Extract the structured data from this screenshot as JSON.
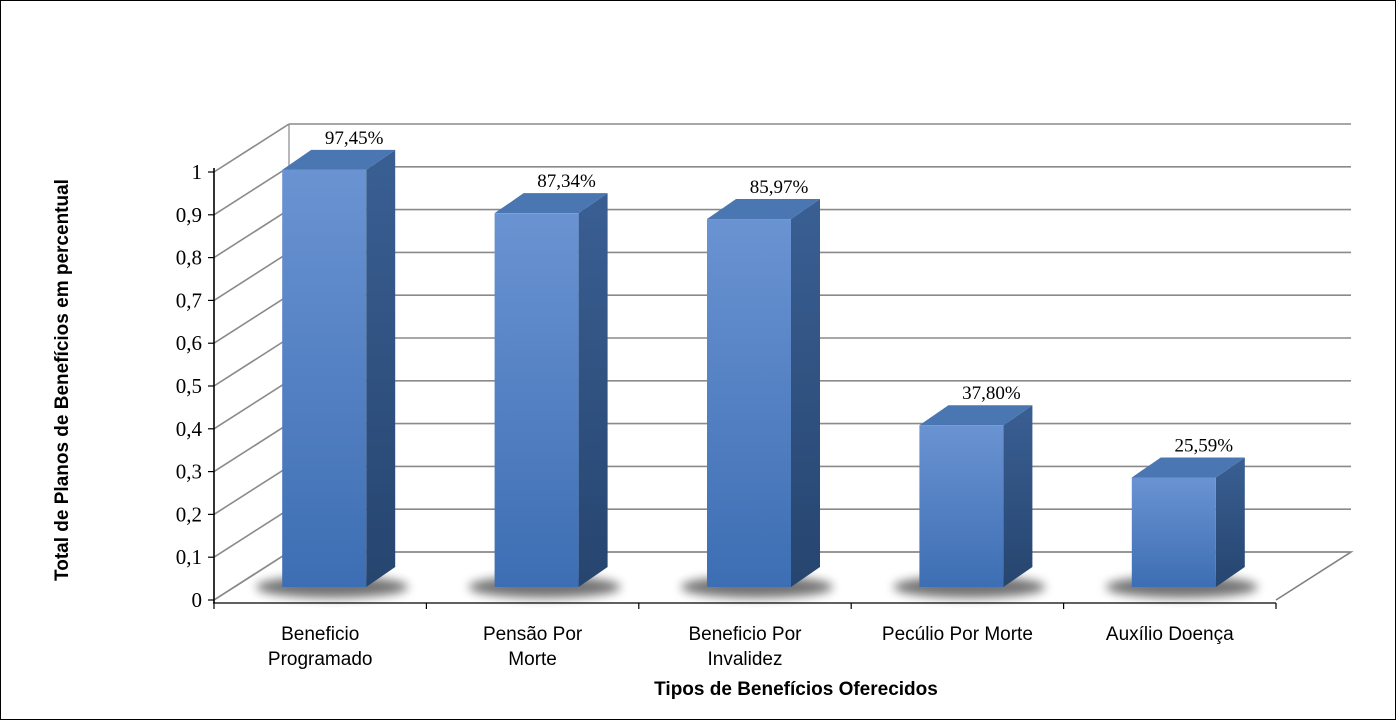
{
  "chart_data": {
    "type": "bar",
    "three_d": true,
    "title": "",
    "xlabel": "Tipos de Benefícios Oferecidos",
    "ylabel": "Total de Planos de Benefícios em percentual",
    "categories": [
      [
        "Beneficio",
        "Programado"
      ],
      [
        "Pensão Por",
        "Morte"
      ],
      [
        "Beneficio Por",
        "Invalidez"
      ],
      [
        "Pecúlio Por Morte"
      ],
      [
        "Auxílio Doença"
      ]
    ],
    "values": [
      0.9745,
      0.8734,
      0.8597,
      0.378,
      0.2559
    ],
    "data_labels": [
      "97,45%",
      "87,34%",
      "85,97%",
      "37,80%",
      "25,59%"
    ],
    "ylim": [
      0,
      1
    ],
    "yticks": [
      "0",
      "0,1",
      "0,2",
      "0,3",
      "0,4",
      "0,5",
      "0,6",
      "0,7",
      "0,8",
      "0,9",
      "1"
    ],
    "grid": true,
    "legend": "none",
    "colors": {
      "bar_front_top": "#6a93d2",
      "bar_front_bottom": "#3d6eb3",
      "bar_side": "#2f5383",
      "bar_top": "#4a76b2",
      "gridline": "#808080"
    }
  }
}
